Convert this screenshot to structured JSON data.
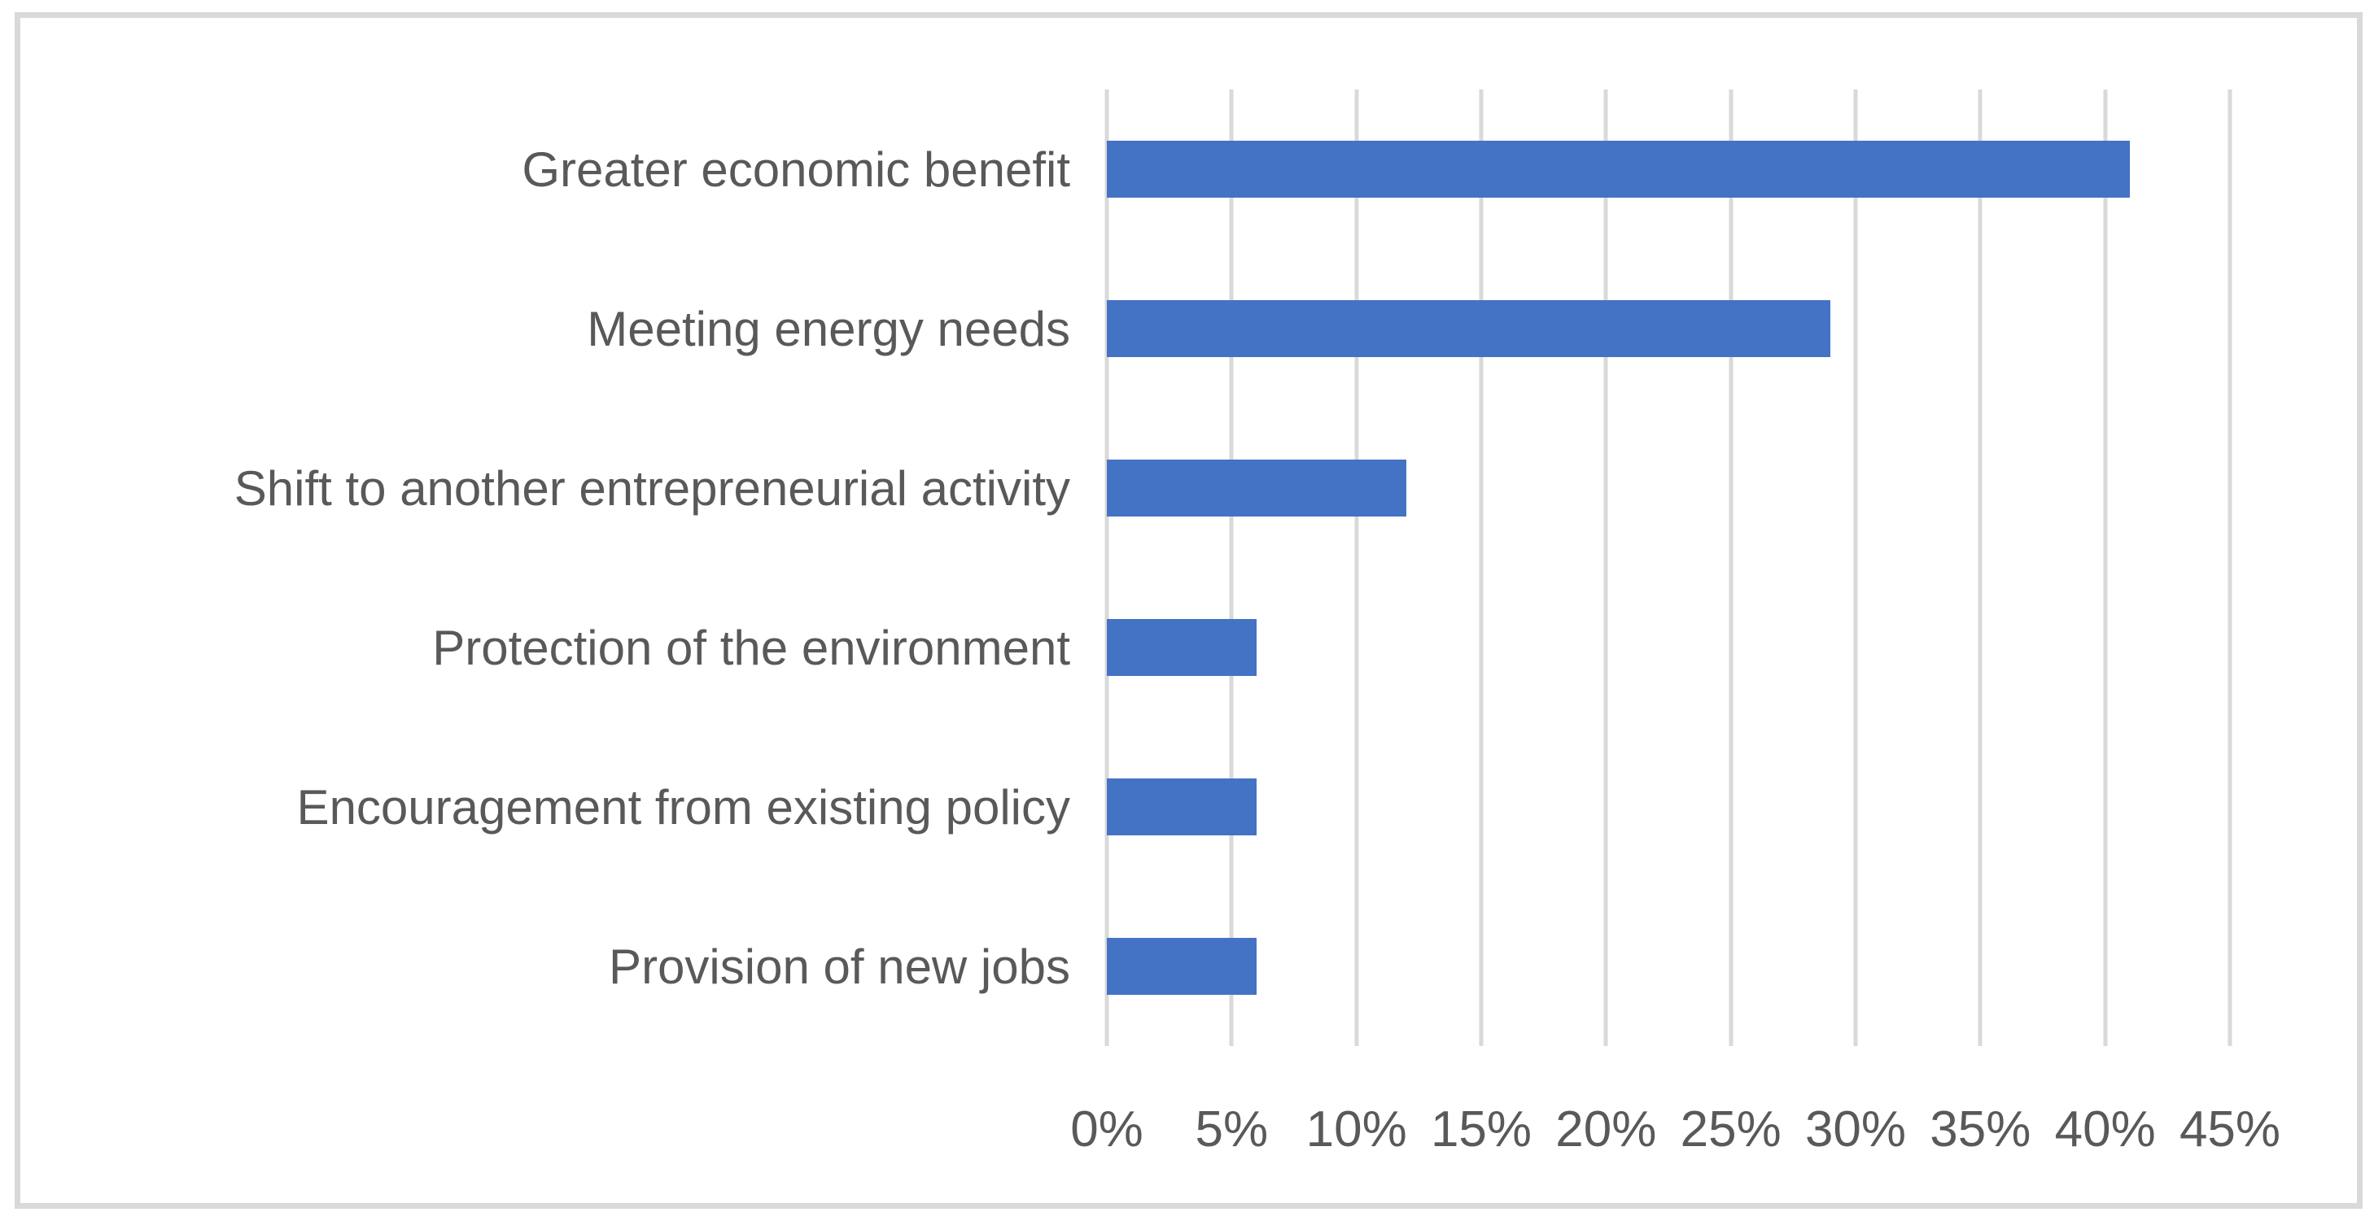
{
  "chart_data": {
    "type": "bar",
    "orientation": "horizontal",
    "title": "",
    "xlabel": "",
    "ylabel": "",
    "categories": [
      "Greater economic benefit",
      "Meeting energy needs",
      "Shift to another entrepreneurial activity",
      "Protection of the environment",
      "Encouragement from existing policy",
      "Provision of new jobs"
    ],
    "values": [
      41,
      29,
      12,
      6,
      6,
      6
    ],
    "unit": "%",
    "xlim": [
      0,
      45
    ],
    "x_ticks": [
      0,
      5,
      10,
      15,
      20,
      25,
      30,
      35,
      40,
      45
    ],
    "x_tick_labels": [
      "0%",
      "5%",
      "10%",
      "15%",
      "20%",
      "25%",
      "30%",
      "35%",
      "40%",
      "45%"
    ],
    "grid": "vertical-only",
    "legend": "none",
    "colors": {
      "bar": "#4472C4",
      "gridline": "#D9D9D9",
      "frame_border": "#D9D9D9",
      "text": "#595959",
      "background": "#FFFFFF"
    }
  }
}
